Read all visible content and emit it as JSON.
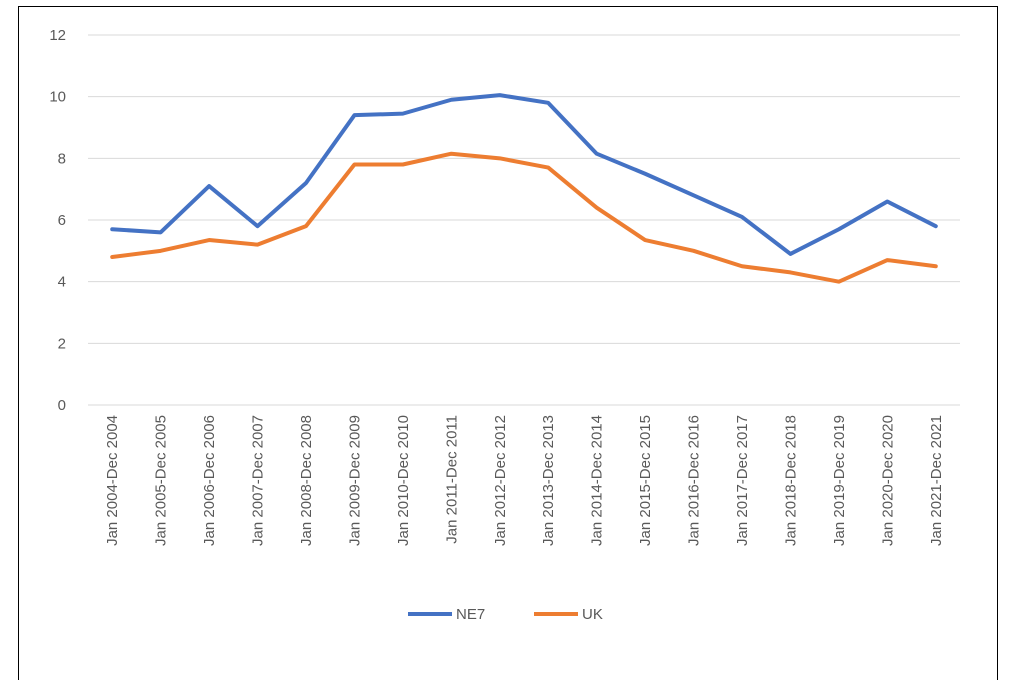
{
  "chart_data": {
    "type": "line",
    "categories": [
      "Jan 2004-Dec 2004",
      "Jan 2005-Dec 2005",
      "Jan 2006-Dec 2006",
      "Jan 2007-Dec 2007",
      "Jan 2008-Dec 2008",
      "Jan 2009-Dec 2009",
      "Jan 2010-Dec 2010",
      "Jan 2011-Dec 2011",
      "Jan 2012-Dec 2012",
      "Jan 2013-Dec 2013",
      "Jan 2014-Dec 2014",
      "Jan 2015-Dec 2015",
      "Jan 2016-Dec 2016",
      "Jan 2017-Dec 2017",
      "Jan 2018-Dec 2018",
      "Jan 2019-Dec 2019",
      "Jan 2020-Dec 2020",
      "Jan 2021-Dec 2021"
    ],
    "series": [
      {
        "name": "NE7",
        "color": "#4472c4",
        "values": [
          5.7,
          5.6,
          7.1,
          5.8,
          7.2,
          9.4,
          9.45,
          9.9,
          10.05,
          9.8,
          8.15,
          7.5,
          6.8,
          6.1,
          4.9,
          5.7,
          6.6,
          5.8
        ]
      },
      {
        "name": "UK",
        "color": "#ed7d31",
        "values": [
          4.8,
          5.0,
          5.35,
          5.2,
          5.8,
          7.8,
          7.8,
          8.15,
          8.0,
          7.7,
          6.4,
          5.35,
          5.0,
          4.5,
          4.3,
          4.0,
          4.7,
          4.5
        ]
      }
    ],
    "ylim": [
      0,
      12
    ],
    "yticks": [
      0,
      2,
      4,
      6,
      8,
      10,
      12
    ],
    "grid": true,
    "legend": "bottom"
  }
}
